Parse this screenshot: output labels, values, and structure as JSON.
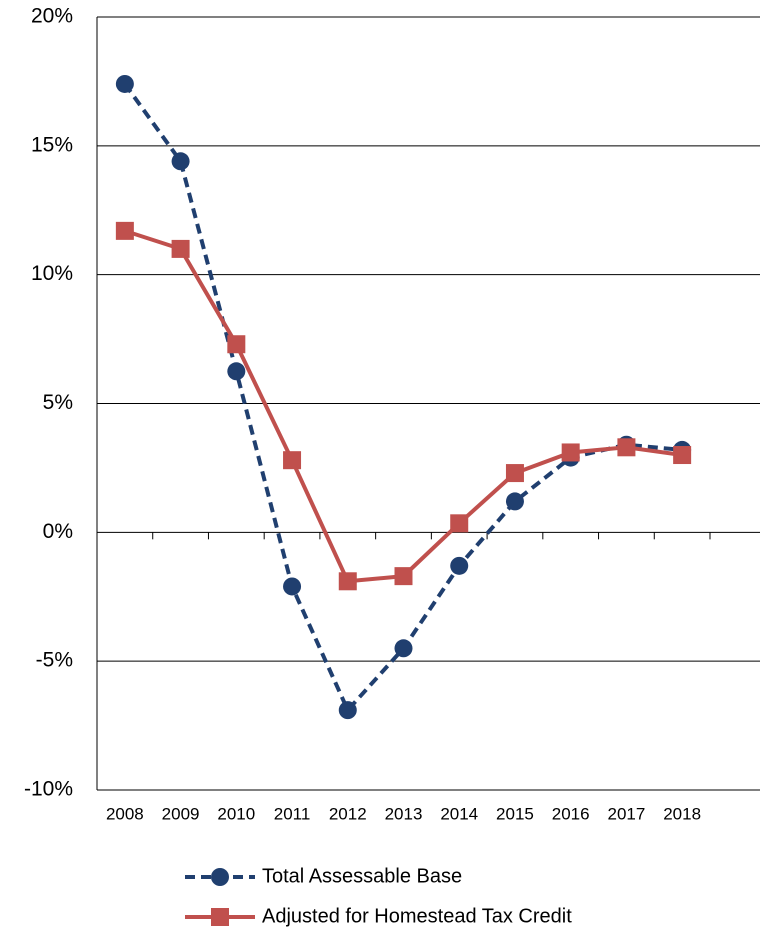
{
  "chart_data": {
    "type": "line",
    "categories": [
      "2008",
      "2009",
      "2010",
      "2011",
      "2012",
      "2013",
      "2014",
      "2015",
      "2016",
      "2017",
      "2018"
    ],
    "series": [
      {
        "name": "Total Assessable Base",
        "color": "#203f6f",
        "marker": "circle",
        "dash": true,
        "values": [
          17.4,
          14.4,
          6.25,
          -2.1,
          -6.9,
          -4.5,
          -1.3,
          1.2,
          2.9,
          3.4,
          3.2
        ]
      },
      {
        "name": "Adjusted for Homestead Tax Credit",
        "color": "#c0504d",
        "marker": "square",
        "dash": false,
        "values": [
          11.7,
          11.0,
          7.3,
          2.8,
          -1.9,
          -1.7,
          0.35,
          2.3,
          3.1,
          3.3,
          3.0
        ]
      }
    ],
    "ylim": [
      -10,
      20
    ],
    "yticks": [
      {
        "value": -10,
        "label": "-10%"
      },
      {
        "value": -5,
        "label": "-5%"
      },
      {
        "value": 0,
        "label": "0%"
      },
      {
        "value": 5,
        "label": "5%"
      },
      {
        "value": 10,
        "label": "10%"
      },
      {
        "value": 15,
        "label": "15%"
      },
      {
        "value": 20,
        "label": "20%"
      }
    ],
    "grid": true,
    "legend": "bottom"
  }
}
